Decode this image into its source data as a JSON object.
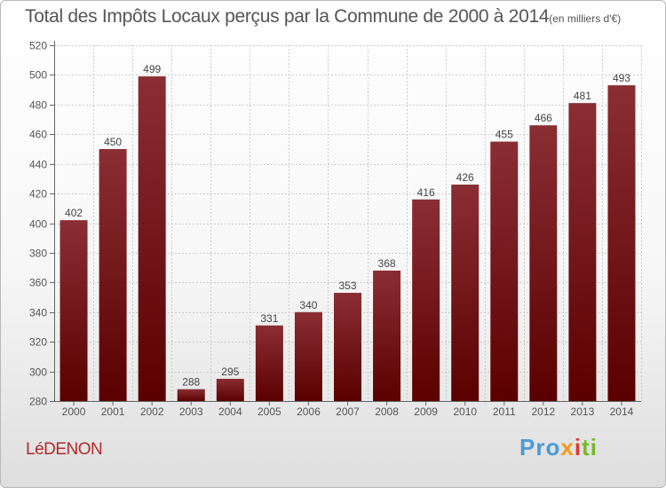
{
  "title": "Total des Impôts Locaux perçus par la Commune de 2000 à 2014",
  "unit": "(en milliers d'€)",
  "commune": "LéDENON",
  "logo": {
    "p1": "Pro",
    "p2": "x",
    "p3": "i",
    "p4": "ti"
  },
  "colors": {
    "bar_top": "#8a2e34",
    "bar_bottom": "#5a0000",
    "text": "#555555",
    "commune": "#b22a2a"
  },
  "chart_data": {
    "type": "bar",
    "categories": [
      "2000",
      "2001",
      "2002",
      "2003",
      "2004",
      "2005",
      "2006",
      "2007",
      "2008",
      "2009",
      "2010",
      "2011",
      "2012",
      "2013",
      "2014"
    ],
    "values": [
      402,
      450,
      499,
      288,
      295,
      331,
      340,
      353,
      368,
      416,
      426,
      455,
      466,
      481,
      493
    ],
    "ylim": [
      280,
      520
    ],
    "yticks": [
      280,
      300,
      320,
      340,
      360,
      380,
      400,
      420,
      440,
      460,
      480,
      500,
      520
    ],
    "grid": true
  }
}
